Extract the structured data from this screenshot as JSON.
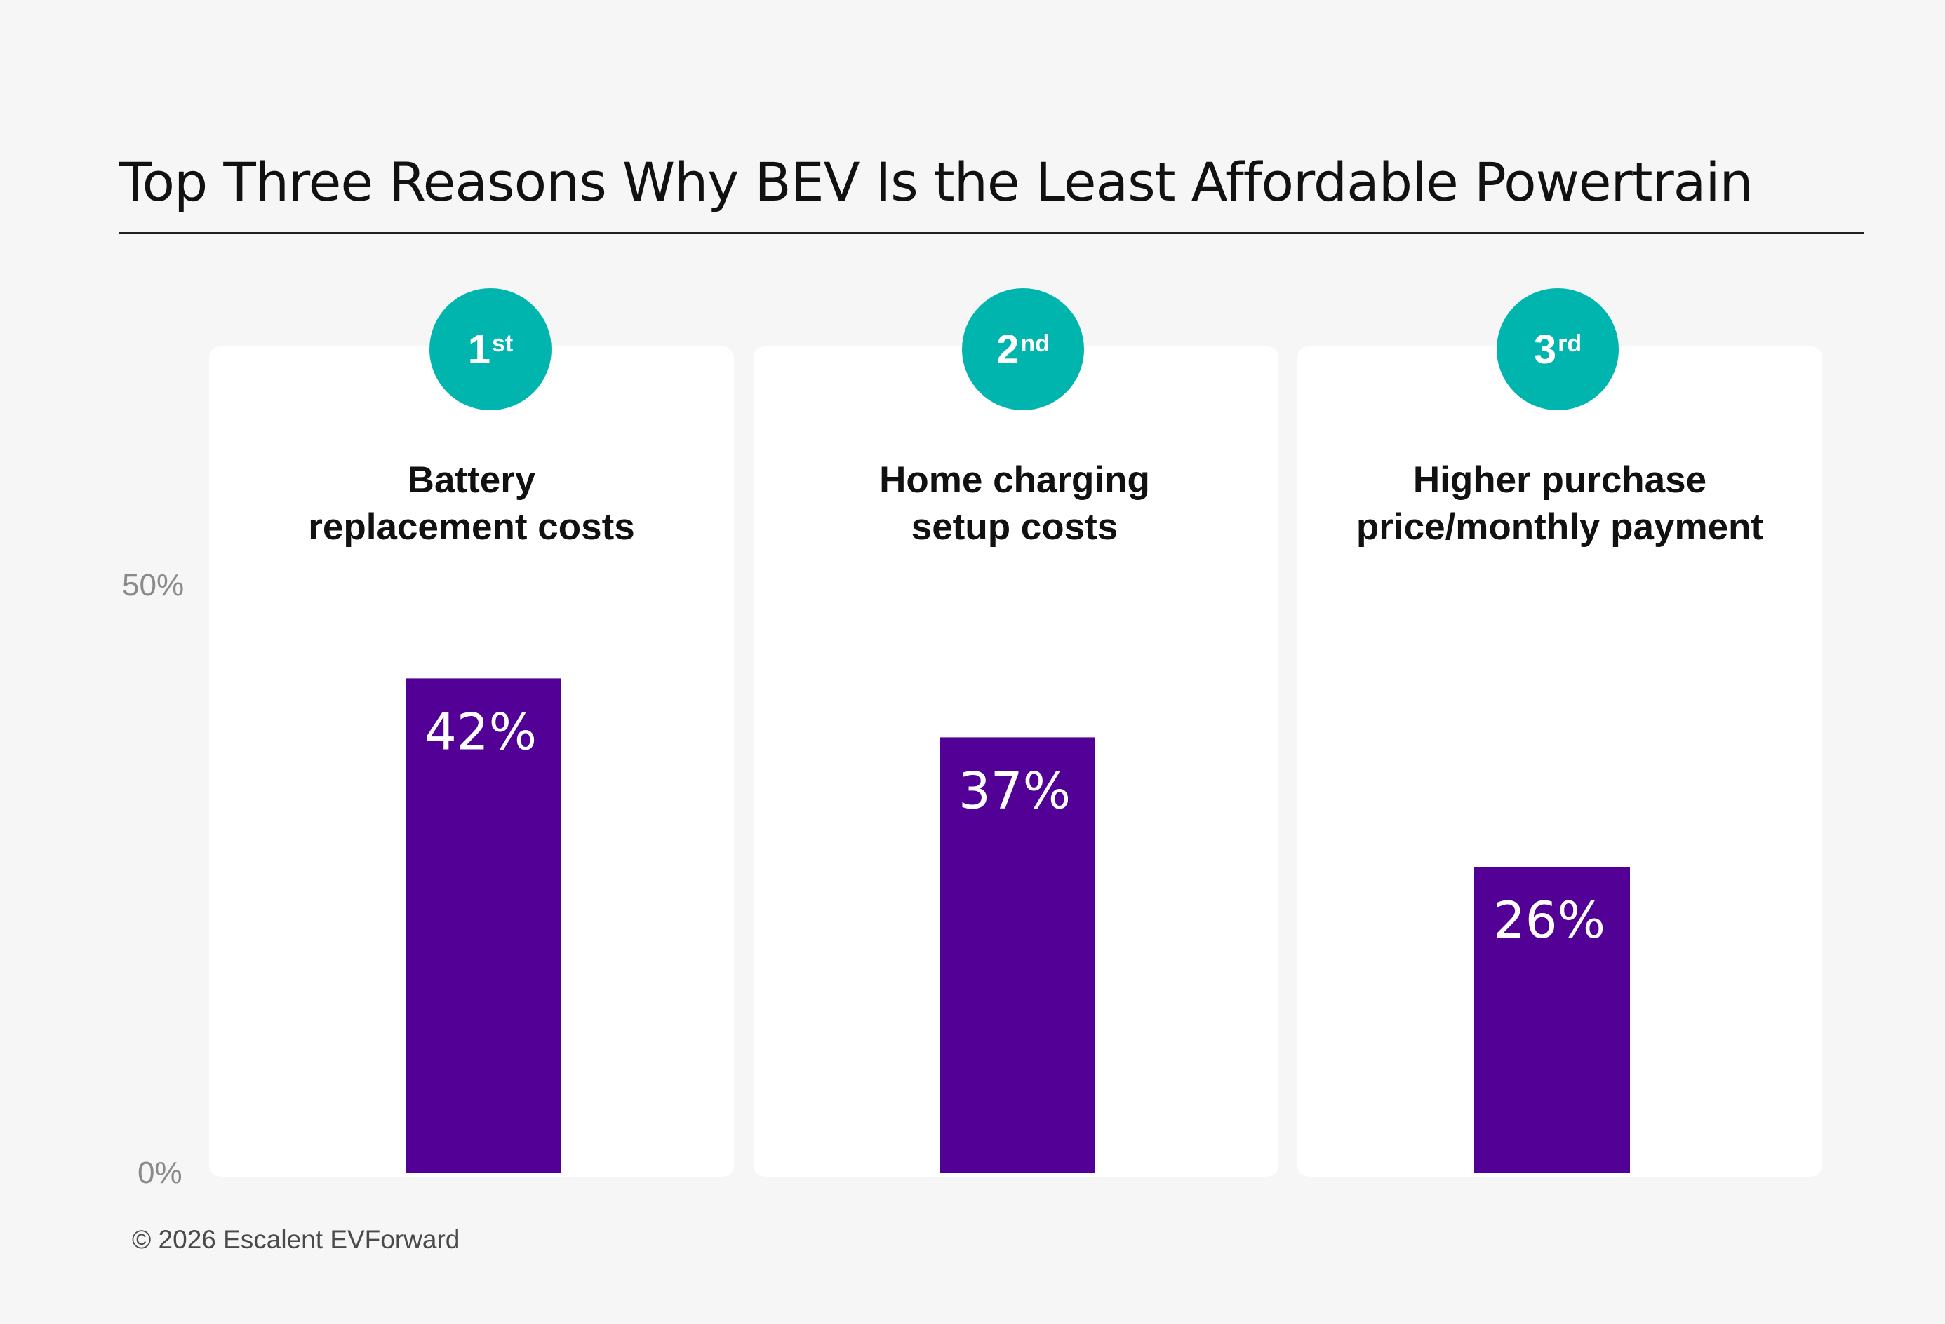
{
  "colors": {
    "background": "#f6f6f6",
    "card": "#ffffff",
    "bar": "#520096",
    "rank_circle": "#00b5ad",
    "axis_text": "#8a8a8a"
  },
  "chart_data": {
    "type": "bar",
    "title": "Top Three Reasons Why BEV Is the Least Affordable Powertrain",
    "categories": [
      "Battery replacement costs",
      "Home charging setup costs",
      "Higher purchase price/monthly payment"
    ],
    "values": [
      42,
      37,
      26
    ],
    "value_labels": [
      "42%",
      "37%",
      "26%"
    ],
    "ranks": [
      {
        "num": "1",
        "suffix": "st"
      },
      {
        "num": "2",
        "suffix": "nd"
      },
      {
        "num": "3",
        "suffix": "rd"
      }
    ],
    "reason_lines": [
      [
        "Battery",
        "replacement costs"
      ],
      [
        "Home charging",
        "setup costs"
      ],
      [
        "Higher purchase",
        "price/monthly payment"
      ]
    ],
    "ylim": [
      0,
      50
    ],
    "y_ticks": [
      "0%",
      "50%"
    ],
    "xlabel": "",
    "ylabel": "",
    "grid": false
  },
  "footer": "© 2026 Escalent EVForward"
}
